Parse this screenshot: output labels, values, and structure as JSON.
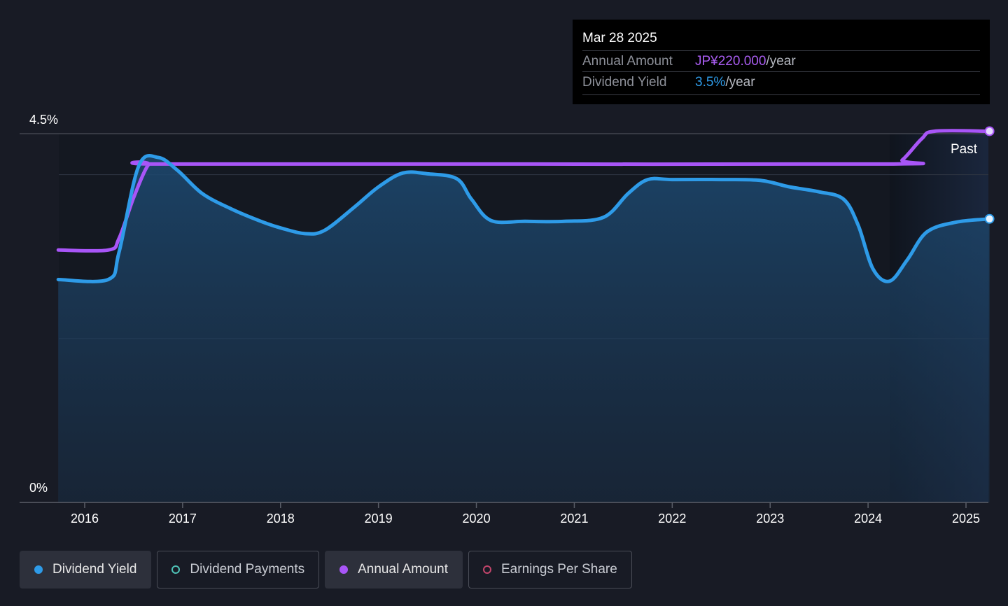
{
  "tooltip": {
    "date": "Mar 28 2025",
    "rows": [
      {
        "label": "Annual Amount",
        "value": "JP¥220.000",
        "unit": "/year"
      },
      {
        "label": "Dividend Yield",
        "value": "3.5%",
        "unit": "/year"
      }
    ]
  },
  "past_label": "Past",
  "legend": [
    {
      "label": "Dividend Yield",
      "color": "#2e9be8"
    },
    {
      "label": "Dividend Payments",
      "color": "#4fc3b8"
    },
    {
      "label": "Annual Amount",
      "color": "#a855f7"
    },
    {
      "label": "Earnings Per Share",
      "color": "#c2456b"
    }
  ],
  "colors": {
    "yield": "#2e9be8",
    "annual": "#a855f7",
    "background": "#181b25"
  },
  "chart_data": {
    "type": "line",
    "y_tick_labels": [
      "4.5%",
      "0%"
    ],
    "ylim": [
      0,
      4.5
    ],
    "x_tick_labels": [
      "2016",
      "2017",
      "2018",
      "2019",
      "2020",
      "2021",
      "2022",
      "2023",
      "2024",
      "2025"
    ],
    "xlim": [
      2015.73,
      2025.24
    ],
    "past_region_start": 2024.22,
    "series": [
      {
        "name": "Dividend Yield",
        "unit": "%",
        "points": [
          [
            2015.73,
            2.72
          ],
          [
            2016.24,
            2.72
          ],
          [
            2016.35,
            3.05
          ],
          [
            2016.55,
            4.1
          ],
          [
            2016.75,
            4.21
          ],
          [
            2016.95,
            4.05
          ],
          [
            2017.2,
            3.77
          ],
          [
            2017.5,
            3.58
          ],
          [
            2017.8,
            3.43
          ],
          [
            2018.0,
            3.35
          ],
          [
            2018.25,
            3.28
          ],
          [
            2018.45,
            3.32
          ],
          [
            2018.75,
            3.6
          ],
          [
            2019.0,
            3.85
          ],
          [
            2019.25,
            4.02
          ],
          [
            2019.5,
            4.01
          ],
          [
            2019.8,
            3.95
          ],
          [
            2019.95,
            3.7
          ],
          [
            2020.15,
            3.44
          ],
          [
            2020.5,
            3.43
          ],
          [
            2020.9,
            3.43
          ],
          [
            2021.3,
            3.48
          ],
          [
            2021.55,
            3.77
          ],
          [
            2021.75,
            3.94
          ],
          [
            2022.0,
            3.94
          ],
          [
            2022.5,
            3.94
          ],
          [
            2022.9,
            3.93
          ],
          [
            2023.2,
            3.85
          ],
          [
            2023.5,
            3.79
          ],
          [
            2023.75,
            3.7
          ],
          [
            2023.9,
            3.38
          ],
          [
            2024.05,
            2.85
          ],
          [
            2024.22,
            2.7
          ],
          [
            2024.4,
            2.96
          ],
          [
            2024.6,
            3.3
          ],
          [
            2024.9,
            3.42
          ],
          [
            2025.24,
            3.46
          ]
        ]
      },
      {
        "name": "Annual Amount",
        "unit": "%-equivalent position",
        "points": [
          [
            2015.73,
            3.08
          ],
          [
            2016.24,
            3.08
          ],
          [
            2016.35,
            3.22
          ],
          [
            2016.5,
            3.72
          ],
          [
            2016.65,
            4.12
          ],
          [
            2016.75,
            4.13
          ],
          [
            2020.0,
            4.13
          ],
          [
            2024.22,
            4.13
          ],
          [
            2024.35,
            4.18
          ],
          [
            2024.55,
            4.44
          ],
          [
            2024.68,
            4.53
          ],
          [
            2025.24,
            4.53
          ]
        ]
      }
    ],
    "grid": true,
    "legend_position": "bottom"
  }
}
